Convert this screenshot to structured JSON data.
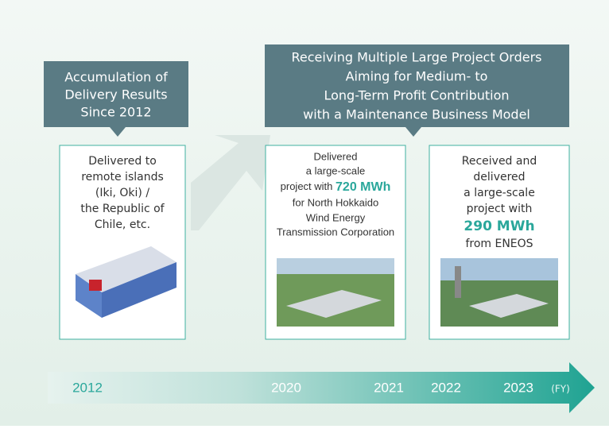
{
  "callouts": [
    {
      "lines": [
        "Accumulation of",
        "Delivery Results",
        "Since 2012"
      ]
    },
    {
      "lines": [
        "Receiving Multiple Large Project Orders",
        "Aiming for Medium- to",
        "Long-Term Profit Contribution",
        "with a Maintenance Business Model"
      ]
    }
  ],
  "cards": [
    {
      "lines": [
        [
          "Delivered to"
        ],
        [
          "remote islands"
        ],
        [
          "(Iki, Oki) /"
        ],
        [
          "the Republic of"
        ],
        [
          "Chile, etc."
        ]
      ]
    },
    {
      "lines": [
        [
          "Delivered"
        ],
        [
          "a large-scale"
        ],
        [
          "project with ",
          "720 MWh"
        ],
        [
          "for North Hokkaido"
        ],
        [
          "Wind Energy"
        ],
        [
          "Transmission Corporation"
        ]
      ]
    },
    {
      "lines": [
        [
          "Received and"
        ],
        [
          "delivered"
        ],
        [
          "a large-scale"
        ],
        [
          "project with"
        ],
        [
          "290 MWh"
        ],
        [
          "from ENEOS"
        ]
      ]
    }
  ],
  "timeline": {
    "years": [
      "2012",
      "2020",
      "2021",
      "2022",
      "2023"
    ],
    "unit": "(FY)"
  }
}
